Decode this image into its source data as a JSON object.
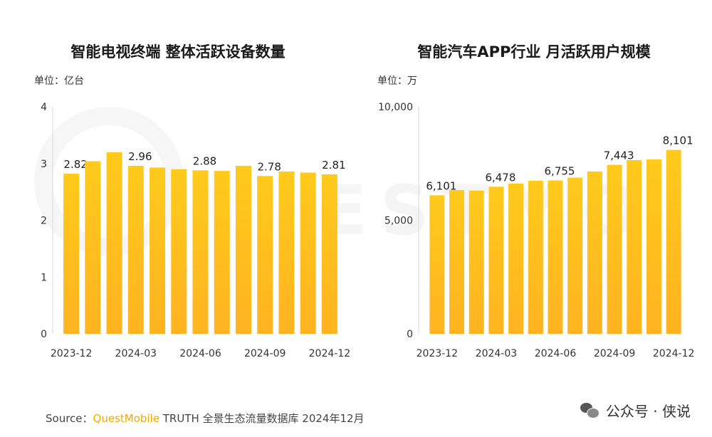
{
  "chart_data": [
    {
      "type": "bar",
      "title": "智能电视终端 整体活跃设备数量",
      "unit_label": "单位：亿台",
      "categories": [
        "2023-12",
        "2024-01",
        "2024-02",
        "2024-03",
        "2024-04",
        "2024-05",
        "2024-06",
        "2024-07",
        "2024-08",
        "2024-09",
        "2024-10",
        "2024-11",
        "2024-12"
      ],
      "values": [
        2.82,
        3.04,
        3.2,
        2.96,
        2.93,
        2.9,
        2.88,
        2.87,
        2.96,
        2.78,
        2.86,
        2.84,
        2.81
      ],
      "data_labels": [
        "2.82",
        "",
        "",
        "2.96",
        "",
        "",
        "2.88",
        "",
        "",
        "2.78",
        "",
        "",
        "2.81"
      ],
      "x_tick_labels": [
        "2023-12",
        "",
        "",
        "2024-03",
        "",
        "",
        "2024-06",
        "",
        "",
        "2024-09",
        "",
        "",
        "2024-12"
      ],
      "y_ticks": [
        "0",
        "1",
        "2",
        "3",
        "4"
      ],
      "ylim": [
        0,
        4
      ],
      "grid": false,
      "bar_color": "#FFC21A"
    },
    {
      "type": "bar",
      "title": "智能汽车APP行业 月活跃用户规模",
      "unit_label": "单位：万",
      "categories": [
        "2023-12",
        "2024-01",
        "2024-02",
        "2024-03",
        "2024-04",
        "2024-05",
        "2024-06",
        "2024-07",
        "2024-08",
        "2024-09",
        "2024-10",
        "2024-11",
        "2024-12"
      ],
      "values": [
        6101,
        6330,
        6310,
        6478,
        6620,
        6740,
        6755,
        6880,
        7150,
        7443,
        7650,
        7680,
        8101
      ],
      "data_labels": [
        "6,101",
        "",
        "",
        "6,478",
        "",
        "",
        "6,755",
        "",
        "",
        "7,443",
        "",
        "",
        "8,101"
      ],
      "x_tick_labels": [
        "2023-12",
        "",
        "",
        "2024-03",
        "",
        "",
        "2024-06",
        "",
        "",
        "2024-09",
        "",
        "",
        "2024-12"
      ],
      "y_ticks": [
        "0",
        "5,000",
        "10,000"
      ],
      "ylim": [
        0,
        10000
      ],
      "grid": false,
      "bar_color": "#FFC21A"
    }
  ],
  "footer": {
    "source_prefix": "Source：",
    "brand": "QuestMobile",
    "source_rest": " TRUTH 全景生态流量数据库 2024年12月"
  },
  "watermark": {
    "text": "公众号 · 侠说",
    "icon": "wechat-icon"
  }
}
